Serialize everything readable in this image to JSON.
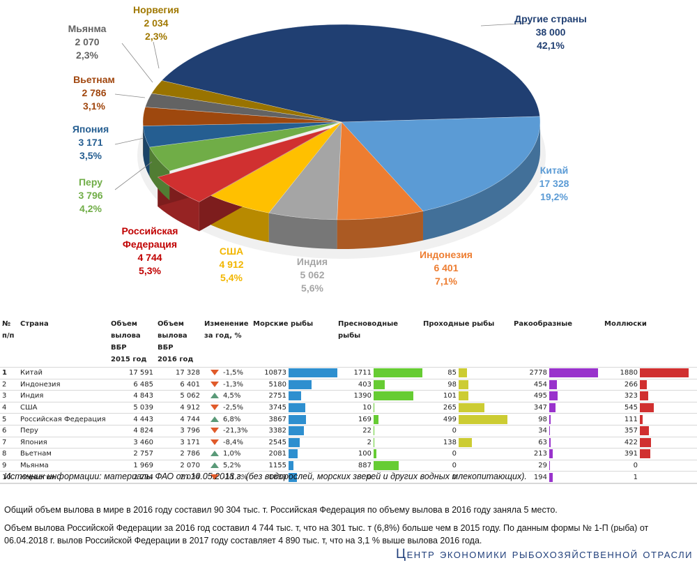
{
  "chart_data": {
    "type": "pie",
    "title": "",
    "subtype": "3d-exploded",
    "slices": [
      {
        "name": "Другие страны",
        "value": 38000,
        "value_label": "38 000",
        "percent": 42.1,
        "percent_label": "42,1%",
        "color": "#203f72",
        "label_color": "#203f72"
      },
      {
        "name": "Китай",
        "value": 17328,
        "value_label": "17 328",
        "percent": 19.2,
        "percent_label": "19,2%",
        "color": "#5b9bd5",
        "label_color": "#5b9bd5"
      },
      {
        "name": "Индонезия",
        "value": 6401,
        "value_label": "6 401",
        "percent": 7.1,
        "percent_label": "7,1%",
        "color": "#ed7d31",
        "label_color": "#ed7d31"
      },
      {
        "name": "Индия",
        "value": 5062,
        "value_label": "5 062",
        "percent": 5.6,
        "percent_label": "5,6%",
        "color": "#a5a5a5",
        "label_color": "#a5a5a5"
      },
      {
        "name": "США",
        "value": 4912,
        "value_label": "4 912",
        "percent": 5.4,
        "percent_label": "5,4%",
        "color": "#ffc000",
        "label_color": "#f2b600"
      },
      {
        "name": "Российская Федерация",
        "value": 4744,
        "value_label": "4 744",
        "percent": 5.3,
        "percent_label": "5,3%",
        "color": "#d03030",
        "label_color": "#c00000",
        "exploded": true
      },
      {
        "name": "Перу",
        "value": 3796,
        "value_label": "3 796",
        "percent": 4.2,
        "percent_label": "4,2%",
        "color": "#70ad47",
        "label_color": "#70ad47"
      },
      {
        "name": "Япония",
        "value": 3171,
        "value_label": "3 171",
        "percent": 3.5,
        "percent_label": "3,5%",
        "color": "#255e91",
        "label_color": "#255e91"
      },
      {
        "name": "Вьетнам",
        "value": 2786,
        "value_label": "2 786",
        "percent": 3.1,
        "percent_label": "3,1%",
        "color": "#9e480e",
        "label_color": "#a0460e"
      },
      {
        "name": "Мьянма",
        "value": 2070,
        "value_label": "2 070",
        "percent": 2.3,
        "percent_label": "2,3%",
        "color": "#636363",
        "label_color": "#636363"
      },
      {
        "name": "Норвегия",
        "value": 2034,
        "value_label": "2 034",
        "percent": 2.3,
        "percent_label": "2,3%",
        "color": "#997300",
        "label_color": "#a07800"
      }
    ],
    "label_lines": {
      "Российская Федерация": [
        "Российская",
        "Федерация"
      ]
    }
  },
  "table": {
    "headers": {
      "num": [
        "№",
        "п/п"
      ],
      "country": "Страна",
      "vol2015": [
        "Объем",
        "вылова ВБР",
        "2015 год"
      ],
      "vol2016": [
        "Объем",
        "вылова ВБР",
        "2016 год"
      ],
      "change": [
        "Изменение",
        "за год, %"
      ],
      "marine": "Морские рыбы",
      "freshwater": "Пресноводные рыбы",
      "diadromous": "Проходные рыбы",
      "crustaceans": "Ракообразные",
      "molluscs": "Моллюски"
    },
    "bar_colors": {
      "marine": "#2e8fcf",
      "freshwater": "#66cc33",
      "diadromous": "#cccc33",
      "crustaceans": "#9933cc",
      "molluscs": "#d03030"
    },
    "change_colors": {
      "down": "#e05a2a",
      "up": "#5a9a78"
    },
    "rows": [
      {
        "num": "1",
        "country": "Китай",
        "vol2015": "17 591",
        "vol2016": "17 328",
        "change": "-1,5%",
        "direction": "down",
        "marine": 10873,
        "freshwater": 1711,
        "diadromous": 85,
        "crustaceans": 2778,
        "molluscs": 1880
      },
      {
        "num": "2",
        "country": "Индонезия",
        "vol2015": "6 485",
        "vol2016": "6 401",
        "change": "-1,3%",
        "direction": "down",
        "marine": 5180,
        "freshwater": 403,
        "diadromous": 98,
        "crustaceans": 454,
        "molluscs": 266
      },
      {
        "num": "3",
        "country": "Индия",
        "vol2015": "4 843",
        "vol2016": "5 062",
        "change": "4,5%",
        "direction": "up",
        "marine": 2751,
        "freshwater": 1390,
        "diadromous": 101,
        "crustaceans": 495,
        "molluscs": 323
      },
      {
        "num": "4",
        "country": "США",
        "vol2015": "5 039",
        "vol2016": "4 912",
        "change": "-2,5%",
        "direction": "down",
        "marine": 3745,
        "freshwater": 10,
        "diadromous": 265,
        "crustaceans": 347,
        "molluscs": 545
      },
      {
        "num": "5",
        "country": "Российская Федерация",
        "vol2015": "4 443",
        "vol2016": "4 744",
        "change": "6,8%",
        "direction": "up",
        "marine": 3867,
        "freshwater": 169,
        "diadromous": 499,
        "crustaceans": 98,
        "molluscs": 111
      },
      {
        "num": "6",
        "country": "Перу",
        "vol2015": "4 824",
        "vol2016": "3 796",
        "change": "-21,3%",
        "direction": "down",
        "marine": 3382,
        "freshwater": 22,
        "diadromous": 0,
        "crustaceans": 34,
        "molluscs": 357
      },
      {
        "num": "7",
        "country": "Япония",
        "vol2015": "3 460",
        "vol2016": "3 171",
        "change": "-8,4%",
        "direction": "down",
        "marine": 2545,
        "freshwater": 2,
        "diadromous": 138,
        "crustaceans": 63,
        "molluscs": 422
      },
      {
        "num": "8",
        "country": "Вьетнам",
        "vol2015": "2 757",
        "vol2016": "2 786",
        "change": "1,0%",
        "direction": "up",
        "marine": 2081,
        "freshwater": 100,
        "diadromous": 0,
        "crustaceans": 213,
        "molluscs": 391
      },
      {
        "num": "9",
        "country": "Мьянма",
        "vol2015": "1 969",
        "vol2016": "2 070",
        "change": "5,2%",
        "direction": "up",
        "marine": 1155,
        "freshwater": 887,
        "diadromous": 0,
        "crustaceans": 29,
        "molluscs": 0
      },
      {
        "num": "10",
        "country": "Норвегия",
        "vol2015": "2 294",
        "vol2016": "2 034",
        "change": "-11,3%",
        "direction": "down",
        "marine": 1839,
        "freshwater": 0,
        "diadromous": 0,
        "crustaceans": 194,
        "molluscs": 1
      }
    ]
  },
  "source_note": "Источник информации: материалы ФАО от 10.05.2018 г. (без водорослей, морских зверей и других водных млекопитающих).",
  "summary_1": "Общий объем вылова в мире в 2016 году составил 90 304 тыс. т. Российская Федерация по объему вылова в 2016 году заняла 5 место.",
  "summary_2": "Объем вылова Российской Федерации за 2016 год составил 4 744 тыс. т, что на 301 тыс. т (6,8%) больше чем в 2015 году. По данным формы № 1-П (рыба) от 06.04.2018 г. вылов Российской Федерации в 2017 году составляет 4 890 тыс. т, что на 3,1 % выше вылова 2016 года.",
  "footer_brand": "Центр экономики рыбохозяйственной отрасли"
}
